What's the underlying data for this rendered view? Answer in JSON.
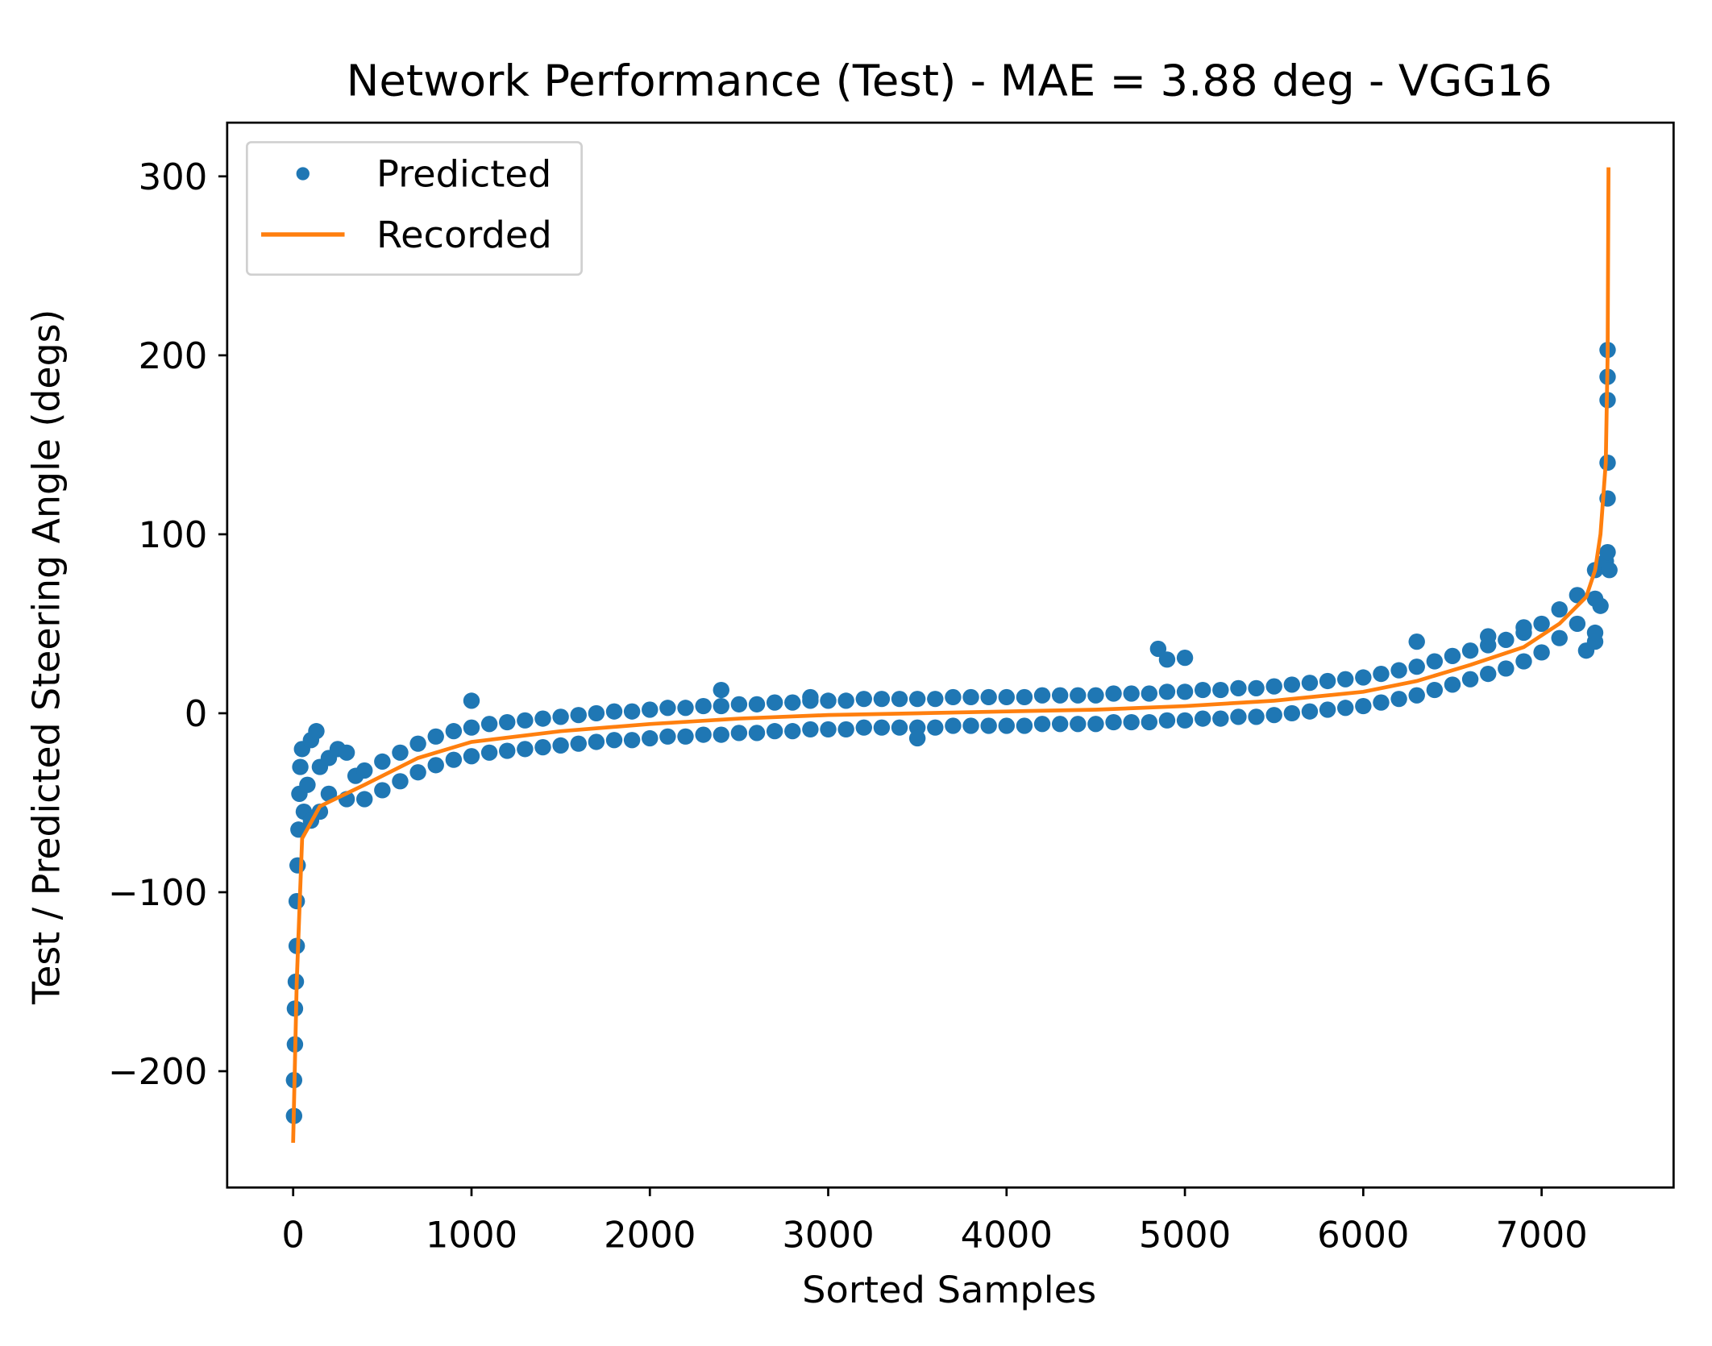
{
  "chart_data": {
    "type": "scatter",
    "title": "Network Performance (Test) - MAE = 3.88 deg - VGG16",
    "xlabel": "Sorted Samples",
    "ylabel": "Test / Predicted Steering Angle (degs)",
    "xlim": [
      -370,
      7740
    ],
    "ylim": [
      -265,
      330
    ],
    "xticks": [
      0,
      1000,
      2000,
      3000,
      4000,
      5000,
      6000,
      7000
    ],
    "yticks": [
      -200,
      -100,
      0,
      100,
      200,
      300
    ],
    "ytick_labels": [
      "−200",
      "−100",
      "0",
      "100",
      "200",
      "300"
    ],
    "grid": false,
    "legend": {
      "placement": "top-left",
      "entries": [
        "Predicted",
        "Recorded"
      ]
    },
    "colors": {
      "predicted": "#1f77b4",
      "recorded": "#ff7f0e"
    },
    "series": [
      {
        "name": "Recorded",
        "kind": "line",
        "points": [
          [
            0,
            -240
          ],
          [
            20,
            -150
          ],
          [
            50,
            -70
          ],
          [
            150,
            -52
          ],
          [
            400,
            -40
          ],
          [
            700,
            -25
          ],
          [
            1000,
            -16
          ],
          [
            1500,
            -10
          ],
          [
            2000,
            -6
          ],
          [
            2500,
            -3
          ],
          [
            3000,
            -1
          ],
          [
            3500,
            0
          ],
          [
            4000,
            1
          ],
          [
            4500,
            2
          ],
          [
            5000,
            4
          ],
          [
            5500,
            7
          ],
          [
            6000,
            12
          ],
          [
            6300,
            18
          ],
          [
            6600,
            27
          ],
          [
            6900,
            37
          ],
          [
            7100,
            50
          ],
          [
            7250,
            65
          ],
          [
            7300,
            80
          ],
          [
            7330,
            100
          ],
          [
            7360,
            140
          ],
          [
            7370,
            200
          ],
          [
            7375,
            305
          ]
        ]
      },
      {
        "name": "Predicted",
        "kind": "scatter",
        "points": [
          [
            5,
            -225
          ],
          [
            5,
            -205
          ],
          [
            10,
            -185
          ],
          [
            10,
            -165
          ],
          [
            15,
            -150
          ],
          [
            20,
            -130
          ],
          [
            20,
            -105
          ],
          [
            25,
            -85
          ],
          [
            30,
            -65
          ],
          [
            35,
            -45
          ],
          [
            40,
            -30
          ],
          [
            50,
            -20
          ],
          [
            60,
            -55
          ],
          [
            80,
            -40
          ],
          [
            100,
            -15
          ],
          [
            100,
            -60
          ],
          [
            130,
            -10
          ],
          [
            150,
            -30
          ],
          [
            150,
            -55
          ],
          [
            200,
            -25
          ],
          [
            200,
            -45
          ],
          [
            250,
            -20
          ],
          [
            300,
            -22
          ],
          [
            300,
            -48
          ],
          [
            350,
            -35
          ],
          [
            400,
            -32
          ],
          [
            400,
            -48
          ],
          [
            500,
            -27
          ],
          [
            500,
            -43
          ],
          [
            600,
            -22
          ],
          [
            600,
            -38
          ],
          [
            700,
            -17
          ],
          [
            700,
            -33
          ],
          [
            800,
            -13
          ],
          [
            800,
            -29
          ],
          [
            900,
            -10
          ],
          [
            900,
            -26
          ],
          [
            1000,
            -8
          ],
          [
            1000,
            -24
          ],
          [
            1100,
            -6
          ],
          [
            1100,
            -22
          ],
          [
            1200,
            -5
          ],
          [
            1200,
            -21
          ],
          [
            1300,
            -4
          ],
          [
            1300,
            -20
          ],
          [
            1400,
            -3
          ],
          [
            1400,
            -19
          ],
          [
            1500,
            -2
          ],
          [
            1500,
            -18
          ],
          [
            1600,
            -1
          ],
          [
            1600,
            -17
          ],
          [
            1700,
            0
          ],
          [
            1700,
            -16
          ],
          [
            1800,
            1
          ],
          [
            1800,
            -15
          ],
          [
            1900,
            1
          ],
          [
            1900,
            -15
          ],
          [
            2000,
            2
          ],
          [
            2000,
            -14
          ],
          [
            2100,
            3
          ],
          [
            2100,
            -13
          ],
          [
            2200,
            3
          ],
          [
            2200,
            -13
          ],
          [
            2300,
            4
          ],
          [
            2300,
            -12
          ],
          [
            2400,
            4
          ],
          [
            2400,
            -12
          ],
          [
            2500,
            5
          ],
          [
            2500,
            -11
          ],
          [
            2600,
            5
          ],
          [
            2600,
            -11
          ],
          [
            2700,
            6
          ],
          [
            2700,
            -10
          ],
          [
            2800,
            6
          ],
          [
            2800,
            -10
          ],
          [
            2900,
            7
          ],
          [
            2900,
            -9
          ],
          [
            3000,
            7
          ],
          [
            3000,
            -9
          ],
          [
            3100,
            7
          ],
          [
            3100,
            -9
          ],
          [
            3200,
            8
          ],
          [
            3200,
            -8
          ],
          [
            3300,
            8
          ],
          [
            3300,
            -8
          ],
          [
            3400,
            8
          ],
          [
            3400,
            -8
          ],
          [
            3500,
            8
          ],
          [
            3500,
            -8
          ],
          [
            3600,
            8
          ],
          [
            3600,
            -8
          ],
          [
            3700,
            9
          ],
          [
            3700,
            -7
          ],
          [
            3800,
            9
          ],
          [
            3800,
            -7
          ],
          [
            3900,
            9
          ],
          [
            3900,
            -7
          ],
          [
            4000,
            9
          ],
          [
            4000,
            -7
          ],
          [
            4100,
            9
          ],
          [
            4100,
            -7
          ],
          [
            4200,
            10
          ],
          [
            4200,
            -6
          ],
          [
            4300,
            10
          ],
          [
            4300,
            -6
          ],
          [
            4400,
            10
          ],
          [
            4400,
            -6
          ],
          [
            4500,
            10
          ],
          [
            4500,
            -6
          ],
          [
            4600,
            11
          ],
          [
            4600,
            -5
          ],
          [
            4700,
            11
          ],
          [
            4700,
            -5
          ],
          [
            4800,
            11
          ],
          [
            4800,
            -5
          ],
          [
            4900,
            12
          ],
          [
            4900,
            -4
          ],
          [
            5000,
            12
          ],
          [
            5000,
            -4
          ],
          [
            5100,
            13
          ],
          [
            5100,
            -3
          ],
          [
            5200,
            13
          ],
          [
            5200,
            -3
          ],
          [
            5300,
            14
          ],
          [
            5300,
            -2
          ],
          [
            5400,
            14
          ],
          [
            5400,
            -2
          ],
          [
            5500,
            15
          ],
          [
            5500,
            -1
          ],
          [
            5600,
            16
          ],
          [
            5600,
            0
          ],
          [
            5700,
            17
          ],
          [
            5700,
            1
          ],
          [
            5800,
            18
          ],
          [
            5800,
            2
          ],
          [
            5900,
            19
          ],
          [
            5900,
            3
          ],
          [
            6000,
            20
          ],
          [
            6000,
            4
          ],
          [
            6100,
            22
          ],
          [
            6100,
            6
          ],
          [
            6200,
            24
          ],
          [
            6200,
            8
          ],
          [
            6300,
            26
          ],
          [
            6300,
            10
          ],
          [
            6400,
            29
          ],
          [
            6400,
            13
          ],
          [
            6500,
            32
          ],
          [
            6500,
            16
          ],
          [
            6600,
            35
          ],
          [
            6600,
            19
          ],
          [
            6700,
            38
          ],
          [
            6700,
            22
          ],
          [
            6800,
            41
          ],
          [
            6800,
            25
          ],
          [
            6900,
            45
          ],
          [
            6900,
            29
          ],
          [
            7000,
            50
          ],
          [
            7000,
            34
          ],
          [
            7100,
            58
          ],
          [
            7100,
            42
          ],
          [
            7200,
            66
          ],
          [
            7200,
            50
          ],
          [
            7300,
            80
          ],
          [
            7300,
            64
          ],
          [
            7250,
            35
          ],
          [
            7300,
            40
          ],
          [
            1000,
            7
          ],
          [
            4850,
            36
          ],
          [
            4900,
            30
          ],
          [
            5000,
            31
          ],
          [
            6300,
            40
          ],
          [
            6700,
            43
          ],
          [
            6900,
            48
          ],
          [
            7300,
            45
          ],
          [
            7330,
            60
          ],
          [
            7360,
            85
          ],
          [
            7370,
            90
          ],
          [
            7380,
            80
          ],
          [
            7370,
            120
          ],
          [
            7370,
            140
          ],
          [
            7370,
            175
          ],
          [
            7370,
            188
          ],
          [
            7370,
            203
          ],
          [
            3500,
            -14
          ],
          [
            2400,
            13
          ],
          [
            2900,
            9
          ]
        ]
      }
    ]
  }
}
